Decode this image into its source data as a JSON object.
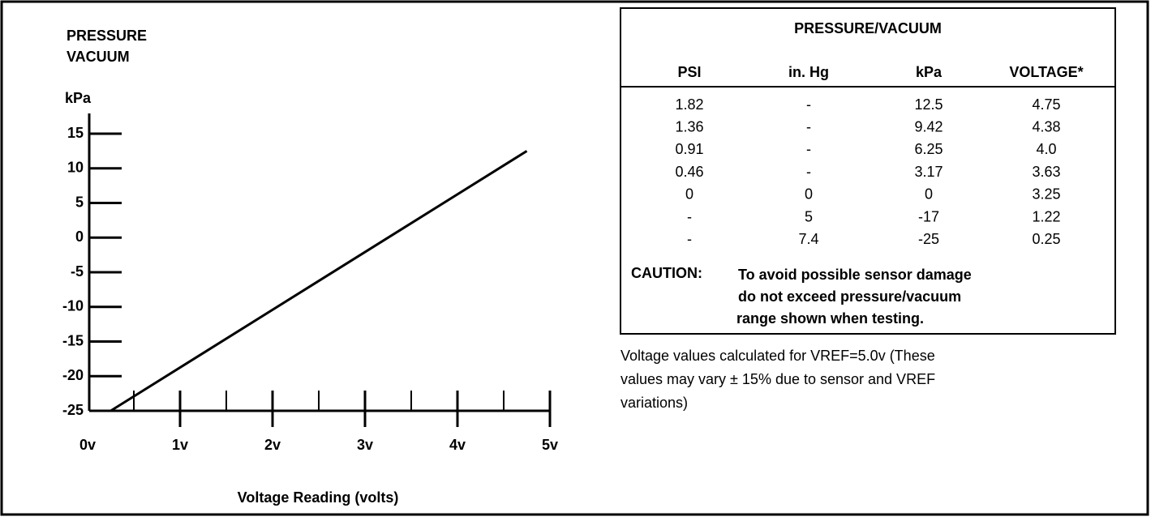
{
  "chart_data": {
    "type": "line",
    "title_lines": [
      "PRESSURE",
      "VACUUM"
    ],
    "y_label": "kPa",
    "x_label": "Voltage Reading (volts)",
    "x": [
      0.25,
      4.75
    ],
    "values": [
      -25,
      12.5
    ],
    "color": "#000000",
    "xlim": [
      0,
      5
    ],
    "ylim": [
      -25,
      15
    ],
    "xticks": [
      {
        "value": 0,
        "label": "0v"
      },
      {
        "value": 1,
        "label": "1v"
      },
      {
        "value": 2,
        "label": "2v"
      },
      {
        "value": 3,
        "label": "3v"
      },
      {
        "value": 4,
        "label": "4v"
      },
      {
        "value": 5,
        "label": "5v"
      }
    ],
    "xminorticks": [
      0.5,
      1.5,
      2.5,
      3.5,
      4.5
    ],
    "yticks": [
      15,
      10,
      5,
      0,
      -5,
      -10,
      -15,
      -20,
      -25
    ]
  },
  "table": {
    "title": "PRESSURE/VACUUM",
    "columns": [
      "PSI",
      "in. Hg",
      "kPa",
      "VOLTAGE*"
    ],
    "rows": [
      [
        "1.82",
        "-",
        "12.5",
        "4.75"
      ],
      [
        "1.36",
        "-",
        "9.42",
        "4.38"
      ],
      [
        "0.91",
        "-",
        "6.25",
        "4.0"
      ],
      [
        "0.46",
        "-",
        "3.17",
        "3.63"
      ],
      [
        "0",
        "0",
        "0",
        "3.25"
      ],
      [
        "-",
        "5",
        "-17",
        "1.22"
      ],
      [
        "-",
        "7.4",
        "-25",
        "0.25"
      ]
    ],
    "caution_label": "CAUTION:",
    "caution_lines": [
      "To avoid possible sensor damage",
      "do not exceed pressure/vacuum",
      "range shown when testing."
    ]
  },
  "note_lines": [
    "Voltage values calculated for VREF=5.0v (These",
    "values may vary ± 15% due to sensor and VREF",
    "variations)"
  ]
}
